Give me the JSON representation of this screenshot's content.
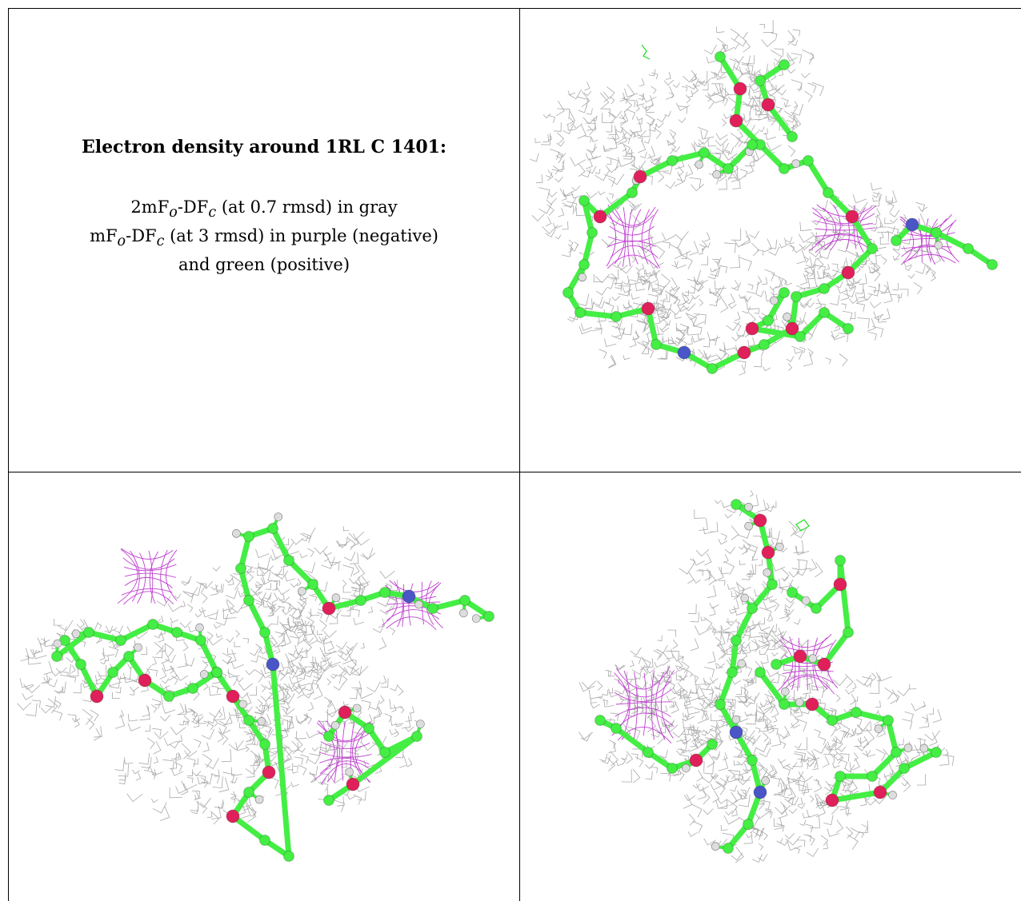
{
  "caption": {
    "title": "Electron density around 1RL C 1401:",
    "line1_a": "2mF",
    "line1_sub1": "o",
    "line1_b": "-DF",
    "line1_sub2": "c",
    "line1_c": " (at 0.7 rmsd) in gray",
    "line2_a": "mF",
    "line2_sub1": "o",
    "line2_b": "-DF",
    "line2_sub2": "c",
    "line2_c": " (at 3 rmsd) in purple (negative)",
    "line3": "and green (positive)"
  },
  "colors": {
    "mesh_gray": "#9a9a9a",
    "negative_purple": "#c040d0",
    "positive_green": "#22dd22",
    "carbon": "#44ee44",
    "oxygen": "#e0205a",
    "nitrogen": "#4a55c8",
    "hydrogen": "#dddddd"
  },
  "panels": [
    {
      "view": "top-right"
    },
    {
      "view": "bottom-left"
    },
    {
      "view": "bottom-right"
    }
  ]
}
